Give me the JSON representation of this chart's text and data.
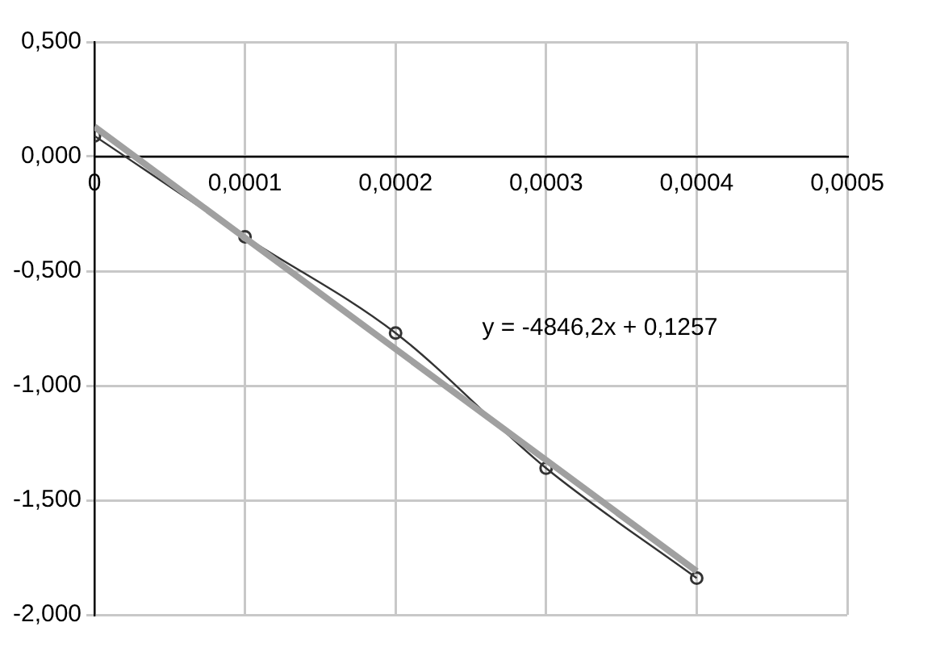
{
  "chart_data": {
    "type": "line",
    "series": [
      {
        "color": "#333333",
        "marker": "circle",
        "x": [
          0,
          0.0001,
          0.0002,
          0.0003,
          0.0004
        ],
        "values": [
          0.09,
          -0.35,
          -0.77,
          -1.36,
          -1.84
        ]
      },
      {
        "type": "line",
        "color": "#a0a0a0",
        "marker": "none",
        "x": [
          0,
          0.0004
        ],
        "values": [
          0.13,
          -1.81
        ]
      }
    ],
    "xlim": [
      0,
      0.0005
    ],
    "xticks": [
      {
        "value": 0,
        "label": "0"
      },
      {
        "value": 0.0001,
        "label": "0,0001"
      },
      {
        "value": 0.0002,
        "label": "0,0002"
      },
      {
        "value": 0.0003,
        "label": "0,0003"
      },
      {
        "value": 0.0004,
        "label": "0,0004"
      },
      {
        "value": 0.0005,
        "label": "0,0005"
      }
    ],
    "ylim": [
      -2,
      0.5
    ],
    "yticks": [
      {
        "value": -2,
        "label": "-2,000"
      },
      {
        "value": -1.5,
        "label": "-1,500"
      },
      {
        "value": -1,
        "label": "-1,000"
      },
      {
        "value": -0.5,
        "label": "-0,500"
      },
      {
        "value": 0,
        "label": "0,000"
      },
      {
        "value": 0.5,
        "label": "0,500"
      }
    ],
    "grid": true,
    "annotations": [
      "y = -4846,2x + 0,1257"
    ]
  }
}
